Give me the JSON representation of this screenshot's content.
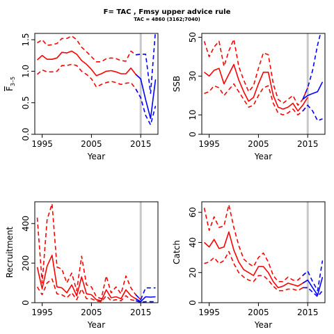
{
  "title": "F= TAC , Fmsy upper advice rule",
  "subtitle": "TAC = 4860 (3162;7040)",
  "colors": {
    "historic": "#ff0000",
    "forecast": "#0000ff",
    "separator": "#c8c8c8"
  },
  "chart_data": [
    {
      "type": "line",
      "xlabel": "Year",
      "ylabel": "F̄₃₋₅",
      "ylabel_main": "F",
      "ylabel_sub": "3–5",
      "xlim": [
        1993.5,
        2018.5
      ],
      "ylim": [
        0,
        1.6
      ],
      "xticks": [
        1995,
        2005,
        2015
      ],
      "yticks": [
        0.0,
        0.5,
        1.0,
        1.5
      ],
      "ytick_labels": [
        "0.0",
        "0.5",
        "1.0",
        "1.5"
      ],
      "separator_x": 2015,
      "series": [
        {
          "x": [
            1994,
            1995,
            1996,
            1997,
            1998,
            1999,
            2000,
            2001,
            2002,
            2003,
            2004,
            2005,
            2006,
            2007,
            2008,
            2009,
            2010,
            2011,
            2012,
            2013,
            2014,
            2015
          ],
          "values": [
            1.18,
            1.25,
            1.19,
            1.19,
            1.21,
            1.3,
            1.29,
            1.32,
            1.27,
            1.17,
            1.11,
            1.03,
            0.93,
            0.96,
            1.0,
            1.01,
            0.99,
            0.96,
            0.96,
            1.05,
            0.95,
            0.88
          ],
          "style": "solid",
          "group": "historic"
        },
        {
          "x": [
            1994,
            1995,
            1996,
            1997,
            1998,
            1999,
            2000,
            2001,
            2002,
            2003,
            2004,
            2005,
            2006,
            2007,
            2008,
            2009,
            2010,
            2011,
            2012,
            2013,
            2014,
            2015
          ],
          "values": [
            1.45,
            1.5,
            1.41,
            1.42,
            1.44,
            1.52,
            1.52,
            1.56,
            1.5,
            1.38,
            1.31,
            1.23,
            1.15,
            1.15,
            1.2,
            1.21,
            1.2,
            1.17,
            1.16,
            1.32,
            1.26,
            1.27
          ],
          "style": "dashed",
          "group": "historic"
        },
        {
          "x": [
            1994,
            1995,
            1996,
            1997,
            1998,
            1999,
            2000,
            2001,
            2002,
            2003,
            2004,
            2005,
            2006,
            2007,
            2008,
            2009,
            2010,
            2011,
            2012,
            2013,
            2014,
            2015
          ],
          "values": [
            0.95,
            1.02,
            0.99,
            0.99,
            1.0,
            1.09,
            1.09,
            1.11,
            1.09,
            1.0,
            0.95,
            0.88,
            0.75,
            0.79,
            0.82,
            0.84,
            0.82,
            0.79,
            0.81,
            0.82,
            0.72,
            0.58
          ],
          "style": "dashed",
          "group": "historic"
        },
        {
          "x": [
            2014,
            2015,
            2016,
            2017,
            2018
          ],
          "values": [
            0.95,
            0.88,
            0.55,
            0.25,
            0.87
          ],
          "style": "solid",
          "group": "forecast"
        },
        {
          "x": [
            2014,
            2015,
            2016,
            2017,
            2018
          ],
          "values": [
            1.26,
            1.27,
            1.27,
            0.65,
            1.65
          ],
          "style": "dashed",
          "group": "forecast"
        },
        {
          "x": [
            2014,
            2015,
            2016,
            2017,
            2018
          ],
          "values": [
            0.72,
            0.58,
            0.3,
            0.15,
            0.45
          ],
          "style": "dashed",
          "group": "forecast"
        }
      ]
    },
    {
      "type": "line",
      "xlabel": "Year",
      "ylabel": "SSB",
      "xlim": [
        1993.5,
        2018.5
      ],
      "ylim": [
        0,
        52
      ],
      "xticks": [
        1995,
        2005,
        2015
      ],
      "yticks": [
        0,
        10,
        30,
        50
      ],
      "ytick_labels": [
        "0",
        "10",
        "30",
        "50"
      ],
      "separator_x": 2015,
      "series": [
        {
          "x": [
            1994,
            1995,
            1996,
            1997,
            1998,
            1999,
            2000,
            2001,
            2002,
            2003,
            2004,
            2005,
            2006,
            2007,
            2008,
            2009,
            2010,
            2011,
            2012,
            2013,
            2014,
            2015
          ],
          "values": [
            32,
            30,
            33,
            34,
            26,
            31,
            36,
            28,
            22,
            17,
            19,
            26,
            32,
            32,
            20,
            14,
            13,
            14,
            16,
            12,
            15,
            19
          ],
          "style": "solid",
          "group": "historic"
        },
        {
          "x": [
            1994,
            1995,
            1996,
            1997,
            1998,
            1999,
            2000,
            2001,
            2002,
            2003,
            2004,
            2005,
            2006,
            2007,
            2008,
            2009,
            2010,
            2011,
            2012,
            2013,
            2014,
            2015
          ],
          "values": [
            48,
            40,
            45,
            48,
            35,
            43,
            49,
            35,
            28,
            22,
            25,
            34,
            42,
            41,
            26,
            18,
            16,
            18,
            20,
            15,
            18,
            24
          ],
          "style": "dashed",
          "group": "historic"
        },
        {
          "x": [
            1994,
            1995,
            1996,
            1997,
            1998,
            1999,
            2000,
            2001,
            2002,
            2003,
            2004,
            2005,
            2006,
            2007,
            2008,
            2009,
            2010,
            2011,
            2012,
            2013,
            2014,
            2015
          ],
          "values": [
            21,
            22,
            25,
            24,
            20,
            23,
            26,
            22,
            18,
            14,
            15,
            20,
            24,
            25,
            16,
            11,
            10,
            11,
            13,
            10,
            12,
            15
          ],
          "style": "dashed",
          "group": "historic"
        },
        {
          "x": [
            2014,
            2015,
            2016,
            2017,
            2018
          ],
          "values": [
            18,
            20,
            21,
            22,
            27
          ],
          "style": "solid",
          "group": "forecast"
        },
        {
          "x": [
            2014,
            2015,
            2016,
            2017,
            2018
          ],
          "values": [
            18,
            24,
            33,
            46,
            56
          ],
          "style": "dashed",
          "group": "forecast"
        },
        {
          "x": [
            2014,
            2015,
            2016,
            2017,
            2018
          ],
          "values": [
            12,
            15,
            12,
            7,
            8
          ],
          "style": "dashed",
          "group": "forecast"
        }
      ]
    },
    {
      "type": "line",
      "xlabel": "Year",
      "ylabel": "Recruitment",
      "xlim": [
        1993.5,
        2018.5
      ],
      "ylim": [
        0,
        510
      ],
      "xticks": [
        1995,
        2005,
        2015
      ],
      "yticks": [
        0,
        200,
        400
      ],
      "ytick_labels": [
        "0",
        "200",
        "400"
      ],
      "separator_x": 2015,
      "series": [
        {
          "x": [
            1994,
            1995,
            1996,
            1997,
            1998,
            1999,
            2000,
            2001,
            2002,
            2003,
            2004,
            2005,
            2006,
            2007,
            2008,
            2009,
            2010,
            2011,
            2012,
            2013,
            2014,
            2015
          ],
          "values": [
            180,
            70,
            185,
            240,
            80,
            75,
            50,
            90,
            35,
            130,
            45,
            40,
            15,
            10,
            65,
            25,
            30,
            20,
            65,
            35,
            20,
            5
          ],
          "style": "solid",
          "group": "historic"
        },
        {
          "x": [
            1994,
            1995,
            1996,
            1997,
            1998,
            1999,
            2000,
            2001,
            2002,
            2003,
            2004,
            2005,
            2006,
            2007,
            2008,
            2009,
            2010,
            2011,
            2012,
            2013,
            2014,
            2015
          ],
          "values": [
            430,
            100,
            420,
            500,
            180,
            170,
            100,
            150,
            60,
            235,
            90,
            80,
            30,
            20,
            135,
            50,
            80,
            45,
            135,
            75,
            40,
            15
          ],
          "style": "dashed",
          "group": "historic"
        },
        {
          "x": [
            1994,
            1995,
            1996,
            1997,
            1998,
            1999,
            2000,
            2001,
            2002,
            2003,
            2004,
            2005,
            2006,
            2007,
            2008,
            2009,
            2010,
            2011,
            2012,
            2013,
            2014,
            2015
          ],
          "values": [
            80,
            40,
            100,
            120,
            45,
            40,
            25,
            50,
            15,
            70,
            20,
            20,
            8,
            5,
            35,
            10,
            15,
            10,
            35,
            15,
            10,
            2
          ],
          "style": "dashed",
          "group": "historic"
        },
        {
          "x": [
            2014,
            2015,
            2016,
            2017,
            2018
          ],
          "values": [
            20,
            5,
            30,
            28,
            30
          ],
          "style": "solid",
          "group": "forecast"
        },
        {
          "x": [
            2014,
            2015,
            2016,
            2017,
            2018
          ],
          "values": [
            40,
            15,
            75,
            75,
            75
          ],
          "style": "dashed",
          "group": "forecast"
        },
        {
          "x": [
            2014,
            2015,
            2016,
            2017,
            2018
          ],
          "values": [
            10,
            2,
            5,
            5,
            5
          ],
          "style": "dashed",
          "group": "forecast"
        }
      ]
    },
    {
      "type": "line",
      "xlabel": "Year",
      "ylabel": "Catch",
      "xlim": [
        1993.5,
        2018.5
      ],
      "ylim": [
        0,
        67
      ],
      "xticks": [
        1995,
        2005,
        2015
      ],
      "yticks": [
        0,
        20,
        40,
        60
      ],
      "ytick_labels": [
        "0",
        "20",
        "40",
        "60"
      ],
      "separator_x": 2015,
      "series": [
        {
          "x": [
            1994,
            1995,
            1996,
            1997,
            1998,
            1999,
            2000,
            2001,
            2002,
            2003,
            2004,
            2005,
            2006,
            2007,
            2008,
            2009,
            2010,
            2011,
            2012,
            2013,
            2014,
            2015
          ],
          "values": [
            40,
            37,
            42,
            36,
            37,
            47,
            35,
            27,
            22,
            20,
            18,
            24,
            24,
            20,
            14,
            10,
            11,
            13,
            12,
            11,
            13,
            15
          ],
          "style": "solid",
          "group": "historic"
        },
        {
          "x": [
            1994,
            1995,
            1996,
            1997,
            1998,
            1999,
            2000,
            2001,
            2002,
            2003,
            2004,
            2005,
            2006,
            2007,
            2008,
            2009,
            2010,
            2011,
            2012,
            2013,
            2014,
            2015
          ],
          "values": [
            63,
            48,
            57,
            50,
            51,
            65,
            50,
            38,
            29,
            26,
            24,
            30,
            33,
            27,
            18,
            14,
            14,
            17,
            15,
            15,
            18,
            21
          ],
          "style": "dashed",
          "group": "historic"
        },
        {
          "x": [
            1994,
            1995,
            1996,
            1997,
            1998,
            1999,
            2000,
            2001,
            2002,
            2003,
            2004,
            2005,
            2006,
            2007,
            2008,
            2009,
            2010,
            2011,
            2012,
            2013,
            2014,
            2015
          ],
          "values": [
            26,
            27,
            30,
            26,
            28,
            34,
            26,
            20,
            17,
            15,
            14,
            18,
            18,
            15,
            11,
            8,
            8,
            9,
            9,
            8,
            10,
            10
          ],
          "style": "dashed",
          "group": "historic"
        },
        {
          "x": [
            2014,
            2015,
            2016,
            2017,
            2018
          ],
          "values": [
            13,
            15,
            10,
            5,
            17
          ],
          "style": "solid",
          "group": "forecast"
        },
        {
          "x": [
            2014,
            2015,
            2016,
            2017,
            2018
          ],
          "values": [
            18,
            21,
            14,
            8,
            28
          ],
          "style": "dashed",
          "group": "forecast"
        },
        {
          "x": [
            2014,
            2015,
            2016,
            2017,
            2018
          ],
          "values": [
            10,
            10,
            7,
            4,
            8
          ],
          "style": "dashed",
          "group": "forecast"
        }
      ]
    }
  ]
}
